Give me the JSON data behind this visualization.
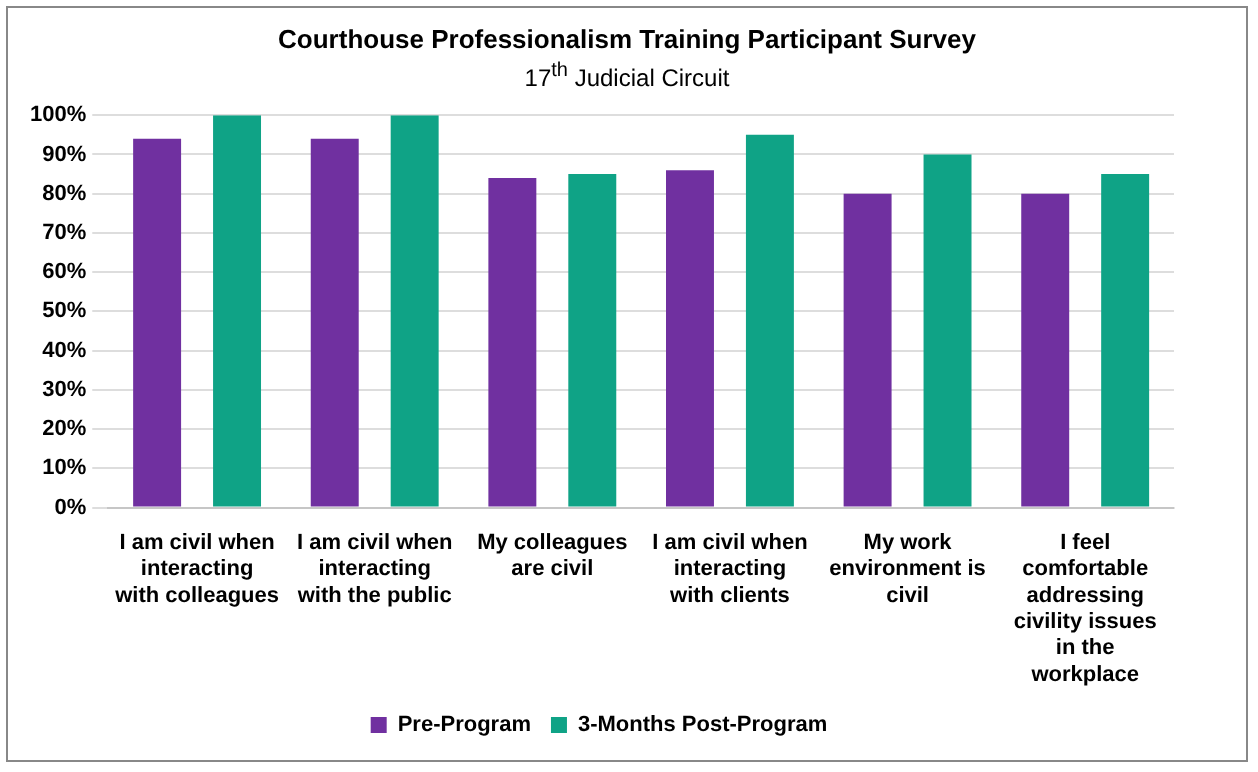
{
  "chart_data": {
    "type": "bar",
    "title": "Courthouse Professionalism Training Participant Survey",
    "subtitle": "17$^{th}$ Judicial Circuit",
    "categories": [
      "I am civil when interacting with colleagues",
      "I am civil when interacting with the public",
      "My colleagues are civil",
      "I am civil when interacting with clients",
      "My work environment is civil",
      "I feel comfortable addressing civility issues in the workplace"
    ],
    "series": [
      {
        "name": "Pre-Program",
        "color": "#7030a0",
        "values": [
          94,
          94,
          84,
          86,
          80,
          80
        ]
      },
      {
        "name": "3-Months Post-Program",
        "color": "#0fa386",
        "values": [
          100,
          100,
          85,
          95,
          90,
          85
        ]
      }
    ],
    "ylim": [
      0,
      100
    ],
    "yticks": [
      {
        "value": 0,
        "label": "0%"
      },
      {
        "value": 10,
        "label": "10%"
      },
      {
        "value": 20,
        "label": "20%"
      },
      {
        "value": 30,
        "label": "30%"
      },
      {
        "value": 40,
        "label": "40%"
      },
      {
        "value": 50,
        "label": "50%"
      },
      {
        "value": 60,
        "label": "60%"
      },
      {
        "value": 70,
        "label": "70%"
      },
      {
        "value": 80,
        "label": "80%"
      },
      {
        "value": 90,
        "label": "90%"
      },
      {
        "value": 100,
        "label": "100%"
      }
    ],
    "grid": "y",
    "legend": "bottom"
  }
}
